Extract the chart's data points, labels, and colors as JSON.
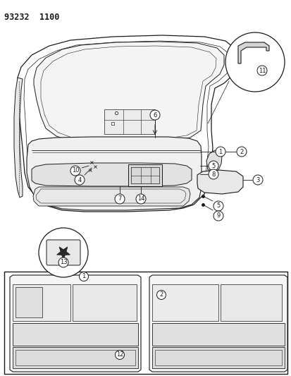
{
  "title": "93232  1100",
  "bg": "#ffffff",
  "lc": "#1a1a1a",
  "fig_w": 4.14,
  "fig_h": 5.33,
  "dpi": 100
}
